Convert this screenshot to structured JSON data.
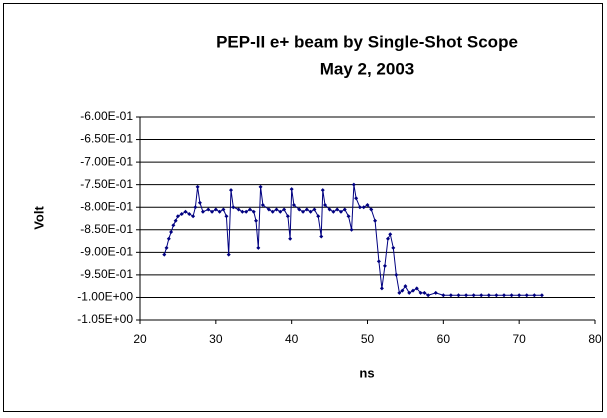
{
  "chart_data": {
    "type": "line",
    "title": "PEP-II e+ beam by Single-Shot Scope",
    "subtitle": "May 2, 2003",
    "x_label": "ns",
    "y_label": "Volt",
    "xlim": [
      20,
      80
    ],
    "xticks": [
      20,
      30,
      40,
      50,
      60,
      70,
      80
    ],
    "ylim": [
      -1.05,
      -0.6
    ],
    "yticks": [
      {
        "value": -1.05,
        "label": "-1.05E+00"
      },
      {
        "value": -1.0,
        "label": "-1.00E+00"
      },
      {
        "value": -0.95,
        "label": "-9.50E-01"
      },
      {
        "value": -0.9,
        "label": "-9.00E-01"
      },
      {
        "value": -0.85,
        "label": "-8.50E-01"
      },
      {
        "value": -0.8,
        "label": "-8.00E-01"
      },
      {
        "value": -0.75,
        "label": "-7.50E-01"
      },
      {
        "value": -0.7,
        "label": "-7.00E-01"
      },
      {
        "value": -0.65,
        "label": "-6.50E-01"
      },
      {
        "value": -0.6,
        "label": "-6.00E-01"
      }
    ],
    "grid": true,
    "color": "#000080",
    "x": [
      23.2,
      23.5,
      23.8,
      24.1,
      24.4,
      24.7,
      25.0,
      25.5,
      26.0,
      26.5,
      27.0,
      27.3,
      27.6,
      27.9,
      28.3,
      29,
      29.5,
      30,
      30.5,
      31,
      31.4,
      31.7,
      32.0,
      32.3,
      33,
      33.5,
      34,
      34.5,
      35,
      35.3,
      35.6,
      35.9,
      36.2,
      37,
      37.5,
      38,
      38.5,
      39,
      39.5,
      39.8,
      40.0,
      40.3,
      41,
      41.5,
      42,
      42.5,
      43,
      43.5,
      43.9,
      44.1,
      44.4,
      45,
      45.5,
      46,
      46.5,
      47,
      47.5,
      47.9,
      48.2,
      48.5,
      49,
      49.5,
      50,
      50.5,
      51,
      51.5,
      51.9,
      52.3,
      52.7,
      53,
      53.4,
      53.8,
      54.2,
      54.6,
      55,
      55.5,
      56,
      56.5,
      57,
      57.5,
      58,
      59,
      60,
      61,
      62,
      63,
      64,
      65,
      66,
      67,
      68,
      69,
      70,
      71,
      72,
      73
    ],
    "values": [
      -0.905,
      -0.89,
      -0.87,
      -0.855,
      -0.84,
      -0.83,
      -0.82,
      -0.815,
      -0.81,
      -0.815,
      -0.82,
      -0.8,
      -0.755,
      -0.79,
      -0.81,
      -0.805,
      -0.81,
      -0.805,
      -0.81,
      -0.805,
      -0.82,
      -0.905,
      -0.762,
      -0.8,
      -0.805,
      -0.81,
      -0.81,
      -0.805,
      -0.81,
      -0.83,
      -0.89,
      -0.755,
      -0.795,
      -0.805,
      -0.81,
      -0.805,
      -0.81,
      -0.805,
      -0.82,
      -0.87,
      -0.76,
      -0.795,
      -0.805,
      -0.81,
      -0.805,
      -0.81,
      -0.805,
      -0.82,
      -0.865,
      -0.762,
      -0.795,
      -0.805,
      -0.81,
      -0.805,
      -0.81,
      -0.805,
      -0.82,
      -0.85,
      -0.75,
      -0.78,
      -0.8,
      -0.8,
      -0.795,
      -0.805,
      -0.83,
      -0.92,
      -0.98,
      -0.93,
      -0.87,
      -0.86,
      -0.89,
      -0.95,
      -0.99,
      -0.985,
      -0.975,
      -0.99,
      -0.985,
      -0.98,
      -0.99,
      -0.99,
      -0.995,
      -0.99,
      -0.995,
      -0.995,
      -0.995,
      -0.995,
      -0.995,
      -0.995,
      -0.995,
      -0.995,
      -0.995,
      -0.995,
      -0.995,
      -0.995,
      -0.995,
      -0.995
    ]
  }
}
